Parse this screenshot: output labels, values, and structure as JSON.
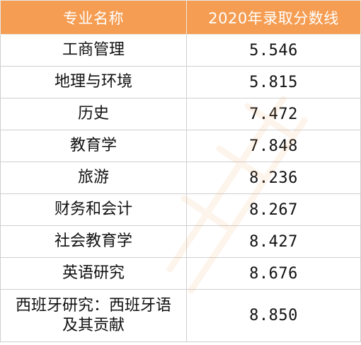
{
  "table": {
    "headers": {
      "major": "专业名称",
      "score": "2020年录取分数线"
    },
    "rows": [
      {
        "major": "工商管理",
        "score": "5.546"
      },
      {
        "major": "地理与环境",
        "score": "5.815"
      },
      {
        "major": "历史",
        "score": "7.472"
      },
      {
        "major": "教育学",
        "score": "7.848"
      },
      {
        "major": "旅游",
        "score": "8.236"
      },
      {
        "major": "财务和会计",
        "score": "8.267"
      },
      {
        "major": "社会教育学",
        "score": "8.427"
      },
      {
        "major": "英语研究",
        "score": "8.676"
      },
      {
        "major": "西班牙研究：西班牙语及其贡献",
        "score": "8.850"
      }
    ]
  },
  "colors": {
    "header_bg": "#f59d52",
    "header_text": "#ffffff",
    "border": "#cfcfcf"
  }
}
